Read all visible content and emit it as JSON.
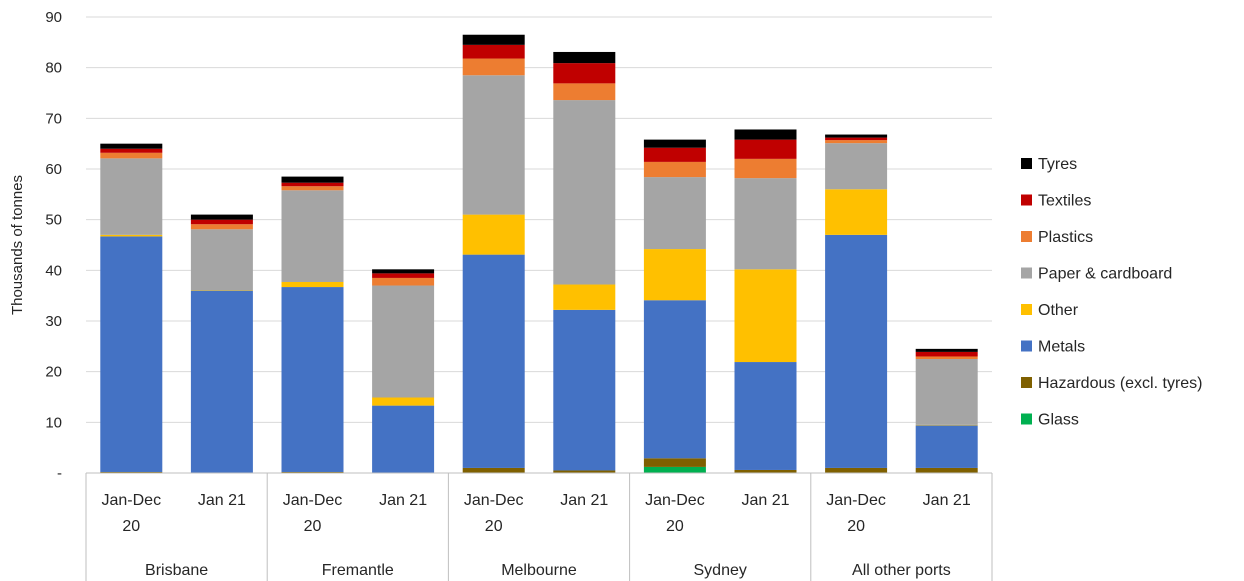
{
  "chart_data": {
    "type": "bar",
    "stacked": true,
    "title": "",
    "ylabel": "Thousands of tonnes",
    "ylim": [
      0,
      90
    ],
    "yticks": [
      0,
      10,
      20,
      30,
      40,
      50,
      60,
      70,
      80,
      90
    ],
    "ytick_labels": [
      "-",
      "10",
      "20",
      "30",
      "40",
      "50",
      "60",
      "70",
      "80",
      "90"
    ],
    "grid": true,
    "legend_position": "right",
    "groups": [
      {
        "label": "Brisbane",
        "categories": [
          "Jan-Dec\n20",
          "Jan 21"
        ]
      },
      {
        "label": "Fremantle",
        "categories": [
          "Jan-Dec\n20",
          "Jan 21"
        ]
      },
      {
        "label": "Melbourne",
        "categories": [
          "Jan-Dec\n20",
          "Jan 21"
        ]
      },
      {
        "label": "Sydney",
        "categories": [
          "Jan-Dec\n20",
          "Jan 21"
        ]
      },
      {
        "label": "All other ports",
        "categories": [
          "Jan-Dec\n20",
          "Jan 21"
        ]
      }
    ],
    "categories": [
      "Jan-Dec 20",
      "Jan 21",
      "Jan-Dec 20",
      "Jan 21",
      "Jan-Dec 20",
      "Jan 21",
      "Jan-Dec 20",
      "Jan 21",
      "Jan-Dec 20",
      "Jan 21"
    ],
    "series": [
      {
        "name": "Glass",
        "color": "#00b050",
        "values": [
          0,
          0,
          0,
          0,
          0,
          0,
          1.2,
          0,
          0,
          0
        ]
      },
      {
        "name": "Hazardous (excl. tyres)",
        "color": "#7f6000",
        "values": [
          0.2,
          0.1,
          0.2,
          0.1,
          1.0,
          0.5,
          1.7,
          0.6,
          1.0,
          1.0
        ]
      },
      {
        "name": "Metals",
        "color": "#4472c4",
        "values": [
          46.5,
          35.9,
          36.5,
          13.2,
          42.1,
          31.7,
          31.2,
          21.3,
          46.0,
          8.4
        ]
      },
      {
        "name": "Other",
        "color": "#ffc000",
        "values": [
          0.3,
          0.1,
          1.0,
          1.6,
          7.9,
          5.0,
          10.1,
          18.3,
          9.0,
          0.1
        ]
      },
      {
        "name": "Paper & cardboard",
        "color": "#a5a5a5",
        "values": [
          15.1,
          12.0,
          18.1,
          22.1,
          27.5,
          36.4,
          14.2,
          18.0,
          9.1,
          13.0
        ]
      },
      {
        "name": "Plastics",
        "color": "#ed7d31",
        "values": [
          1.1,
          1.0,
          0.8,
          1.5,
          3.3,
          3.3,
          3.0,
          3.8,
          0.6,
          0.5
        ]
      },
      {
        "name": "Textiles",
        "color": "#c00000",
        "values": [
          0.8,
          0.9,
          0.7,
          0.9,
          2.7,
          4.0,
          2.8,
          3.8,
          0.5,
          0.9
        ]
      },
      {
        "name": "Tyres",
        "color": "#000000",
        "values": [
          1.0,
          1.0,
          1.2,
          0.8,
          2.0,
          2.2,
          1.6,
          2.0,
          0.6,
          0.6
        ]
      }
    ]
  }
}
